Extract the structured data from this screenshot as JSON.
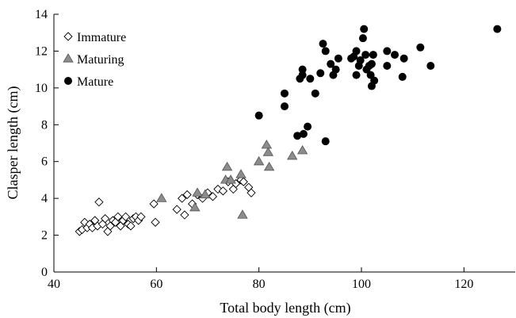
{
  "chart_data": {
    "type": "scatter",
    "xlabel": "Total body length (cm)",
    "ylabel": "Clasper length (cm)",
    "xlim": [
      40,
      130
    ],
    "ylim": [
      0,
      14
    ],
    "xticks": [
      40,
      60,
      80,
      100,
      120
    ],
    "yticks": [
      0,
      2,
      4,
      6,
      8,
      10,
      12,
      14
    ],
    "legend_position": "top-left",
    "colors": {
      "immature_fill": "#ffffff",
      "maturing_fill": "#8c8c8c",
      "mature_fill": "#000000",
      "marker_stroke": "#000000"
    },
    "series": [
      {
        "name": "Immature",
        "marker": "diamond",
        "points": [
          [
            45,
            2.2
          ],
          [
            45.5,
            2.3
          ],
          [
            46,
            2.7
          ],
          [
            46.5,
            2.4
          ],
          [
            47,
            2.6
          ],
          [
            47.5,
            2.4
          ],
          [
            48,
            2.8
          ],
          [
            48.5,
            2.5
          ],
          [
            48.8,
            3.8
          ],
          [
            49.5,
            2.6
          ],
          [
            50,
            2.9
          ],
          [
            50.5,
            2.2
          ],
          [
            51,
            2.5
          ],
          [
            51.5,
            2.8
          ],
          [
            52,
            2.7
          ],
          [
            52.5,
            3.0
          ],
          [
            53,
            2.5
          ],
          [
            53.5,
            2.8
          ],
          [
            54,
            3.0
          ],
          [
            54.5,
            2.6
          ],
          [
            55,
            2.5
          ],
          [
            55.5,
            2.9
          ],
          [
            56,
            3.0
          ],
          [
            56.5,
            2.8
          ],
          [
            57,
            3.0
          ],
          [
            59.5,
            3.7
          ],
          [
            59.8,
            2.7
          ],
          [
            64,
            3.4
          ],
          [
            65,
            4.0
          ],
          [
            65.5,
            3.1
          ],
          [
            66,
            4.2
          ],
          [
            67,
            3.7
          ],
          [
            68,
            4.2
          ],
          [
            69,
            4.0
          ],
          [
            70,
            4.3
          ],
          [
            71,
            4.1
          ],
          [
            72,
            4.5
          ],
          [
            73,
            4.4
          ],
          [
            74,
            4.9
          ],
          [
            75,
            4.5
          ],
          [
            75.5,
            4.8
          ],
          [
            76.5,
            5.0
          ],
          [
            77,
            4.9
          ],
          [
            78,
            4.6
          ],
          [
            78.5,
            4.3
          ]
        ]
      },
      {
        "name": "Maturing",
        "marker": "triangle",
        "points": [
          [
            61,
            4.0
          ],
          [
            67.5,
            3.5
          ],
          [
            68,
            4.3
          ],
          [
            69.5,
            4.2
          ],
          [
            73.5,
            5.0
          ],
          [
            73.8,
            5.7
          ],
          [
            74.5,
            5.0
          ],
          [
            76.5,
            5.3
          ],
          [
            76.8,
            3.1
          ],
          [
            80,
            6.0
          ],
          [
            81.5,
            6.9
          ],
          [
            81.8,
            6.5
          ],
          [
            82,
            5.7
          ],
          [
            86.5,
            6.3
          ],
          [
            88.5,
            6.6
          ]
        ]
      },
      {
        "name": "Mature",
        "marker": "circle",
        "points": [
          [
            80,
            8.5
          ],
          [
            85,
            9.7
          ],
          [
            85,
            9.0
          ],
          [
            87.5,
            7.4
          ],
          [
            88,
            10.5
          ],
          [
            88.5,
            11.0
          ],
          [
            88.5,
            10.7
          ],
          [
            88.7,
            7.5
          ],
          [
            89.5,
            7.9
          ],
          [
            90,
            10.5
          ],
          [
            91,
            9.7
          ],
          [
            92,
            10.8
          ],
          [
            92.5,
            12.4
          ],
          [
            93,
            12.0
          ],
          [
            93,
            7.1
          ],
          [
            94,
            11.3
          ],
          [
            94.5,
            10.7
          ],
          [
            95,
            11.0
          ],
          [
            95.5,
            11.6
          ],
          [
            98,
            11.6
          ],
          [
            98.5,
            11.7
          ],
          [
            99,
            12.0
          ],
          [
            99,
            10.7
          ],
          [
            99.5,
            11.2
          ],
          [
            99.8,
            11.5
          ],
          [
            100.3,
            12.7
          ],
          [
            100.5,
            13.2
          ],
          [
            100.8,
            11.8
          ],
          [
            101,
            11.0
          ],
          [
            101.5,
            11.2
          ],
          [
            101.8,
            10.7
          ],
          [
            102,
            11.3
          ],
          [
            102,
            10.1
          ],
          [
            102.3,
            11.8
          ],
          [
            102.5,
            10.4
          ],
          [
            105,
            12.0
          ],
          [
            105,
            11.2
          ],
          [
            106.5,
            11.8
          ],
          [
            108,
            10.6
          ],
          [
            108.3,
            11.6
          ],
          [
            111.5,
            12.2
          ],
          [
            113.5,
            11.2
          ],
          [
            126.5,
            13.2
          ]
        ]
      }
    ]
  }
}
